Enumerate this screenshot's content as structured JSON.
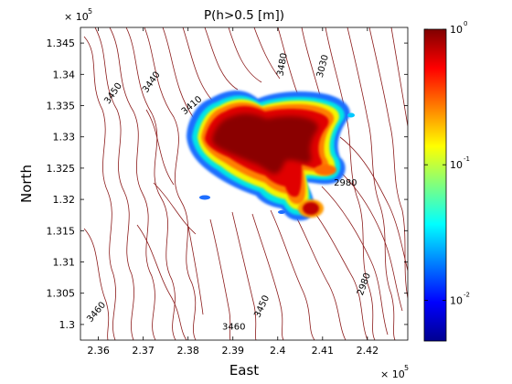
{
  "chart_data": {
    "type": "heatmap",
    "title": "P(h>0.5 [m])",
    "xlabel": "East",
    "ylabel": "North",
    "x_ticks": [
      "2.36",
      "2.37",
      "2.38",
      "2.39",
      "2.4",
      "2.41",
      "2.42"
    ],
    "x_tick_values": [
      2.36,
      2.37,
      2.38,
      2.39,
      2.4,
      2.41,
      2.42
    ],
    "x_exponent": "5",
    "x_exponent_base": "× 10",
    "xlim": [
      2.356,
      2.429
    ],
    "y_ticks": [
      "1.3",
      "1.305",
      "1.31",
      "1.315",
      "1.32",
      "1.325",
      "1.33",
      "1.335",
      "1.34",
      "1.345"
    ],
    "y_tick_values": [
      1.3,
      1.305,
      1.31,
      1.315,
      1.32,
      1.325,
      1.33,
      1.335,
      1.34,
      1.345
    ],
    "y_exponent": "5",
    "y_exponent_base": "× 10",
    "ylim": [
      1.2975,
      1.3475
    ],
    "colorbar": {
      "scale": "log",
      "range": [
        0.005,
        1
      ],
      "ticks": [
        {
          "value": 1,
          "base": "10",
          "exp": "0"
        },
        {
          "value": 0.1,
          "base": "10",
          "exp": "-1"
        },
        {
          "value": 0.01,
          "base": "10",
          "exp": "-2"
        }
      ],
      "colormap": "jet"
    },
    "contour_labels": [
      {
        "text": "3450",
        "e": 2.3638,
        "n": 1.3367,
        "rot": -55
      },
      {
        "text": "3440",
        "e": 2.3723,
        "n": 1.3385,
        "rot": -55
      },
      {
        "text": "3410",
        "e": 2.3812,
        "n": 1.3347,
        "rot": -40
      },
      {
        "text": "3480",
        "e": 2.4016,
        "n": 1.3415,
        "rot": -80
      },
      {
        "text": "3030",
        "e": 2.4106,
        "n": 1.3412,
        "rot": -75
      },
      {
        "text": "2980",
        "e": 2.4151,
        "n": 1.3222,
        "rot": 0
      },
      {
        "text": "3460",
        "e": 2.36,
        "n": 1.3017,
        "rot": -50
      },
      {
        "text": "3450",
        "e": 2.397,
        "n": 1.3027,
        "rot": -65
      },
      {
        "text": "3460",
        "e": 2.3902,
        "n": 1.2992,
        "rot": 0
      },
      {
        "text": "2980",
        "e": 2.4198,
        "n": 1.3063,
        "rot": -70
      }
    ],
    "contour_color": "#8b1a1a",
    "grid": false
  }
}
